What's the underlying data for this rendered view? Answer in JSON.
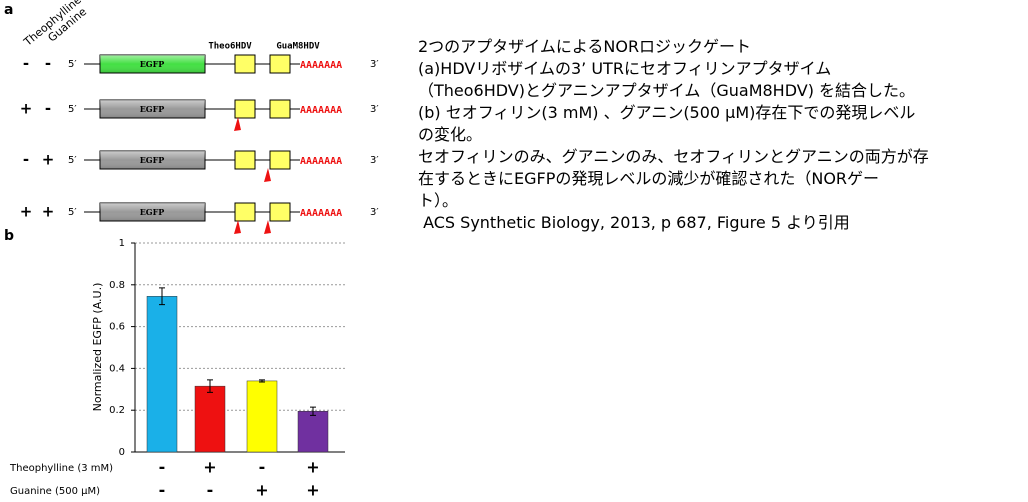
{
  "panel_a": {
    "label": "a",
    "column_labels": [
      "Theophylline",
      "Guanine"
    ],
    "aptazyme_labels": [
      "Theo6HDV",
      "GuaM8HDV"
    ],
    "five_prime": "5′",
    "three_prime": "3′",
    "gene": "EGFP",
    "poly_a": "AAAAAAA",
    "rows": [
      {
        "theophylline": "-",
        "guanine": "-",
        "box_color": "#44e044"
      },
      {
        "theophylline": "+",
        "guanine": "-",
        "box_color": "#9a9a9a"
      },
      {
        "theophylline": "-",
        "guanine": "+",
        "box_color": "#9a9a9a"
      },
      {
        "theophylline": "+",
        "guanine": "+",
        "box_color": "#9a9a9a"
      }
    ]
  },
  "chart_data": {
    "type": "bar",
    "panel_label": "b",
    "y_label": "Normalized EGFP (A.U.)",
    "values": [
      0.745,
      0.315,
      0.34,
      0.195
    ],
    "errors": [
      0.04,
      0.03,
      0.005,
      0.02
    ],
    "colors": [
      "#1ab0e8",
      "#ee1111",
      "#ffff00",
      "#7030a0"
    ],
    "ylim": [
      0,
      1
    ],
    "yticks": [
      0,
      0.2,
      0.4,
      0.6,
      0.8,
      1
    ],
    "grid": true,
    "conditions": [
      {
        "label": "Theophylline (3 mM)",
        "signs": [
          "-",
          "+",
          "-",
          "+"
        ]
      },
      {
        "label": "Guanine (500 µM)",
        "signs": [
          "-",
          "-",
          "+",
          "+"
        ]
      }
    ]
  },
  "notes": [
    "2つのアプタザイムによるNORロジックゲート",
    "(a)HDVリボザイムの3’ UTRにセオフィリンアプタザイム",
    "（Theo6HDV)とグアニンアプタザイム（GuaM8HDV) を結合した。",
    "(b) セオフィリン(3 mM) 、グアニン(500 μM)存在下での発現レベル",
    "の変化。",
    "セオフィリンのみ、グアニンのみ、セオフィリンとグアニンの両方が存",
    "在するときにEGFPの発現レベルの減少が確認された（NORゲー",
    "ト）。",
    " ACS Synthetic Biology, 2013, p 687, Figure 5 より引用"
  ]
}
